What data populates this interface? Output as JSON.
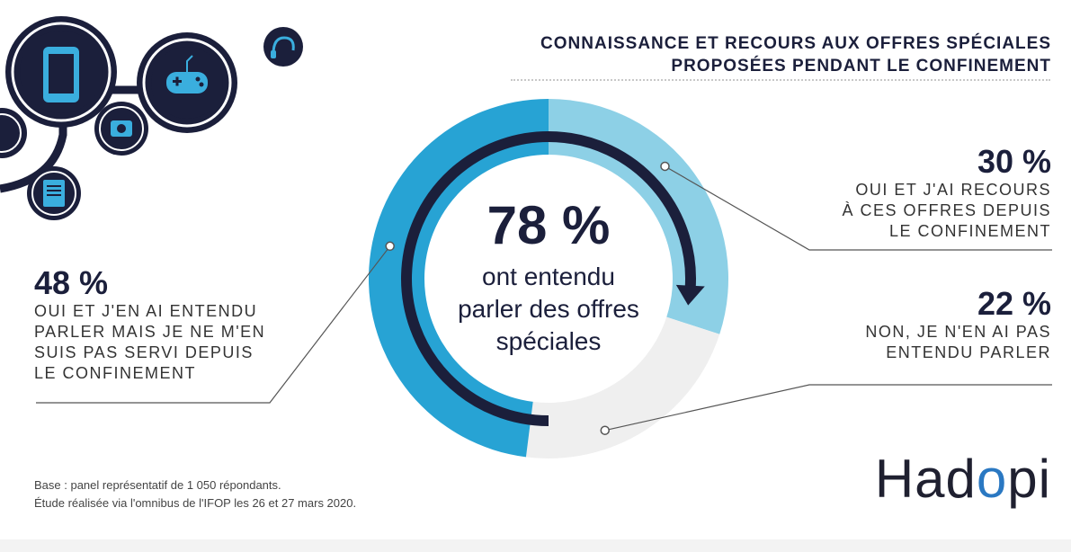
{
  "title": {
    "line1": "CONNAISSANCE ET RECOURS AUX OFFRES SPÉCIALES",
    "line2": "PROPOSÉES PENDANT LE CONFINEMENT"
  },
  "center": {
    "value": "78 %",
    "label": "ont entendu\nparler des offres\nspéciales"
  },
  "callouts": {
    "left": {
      "pct": "48 %",
      "desc": "OUI ET J'EN AI ENTENDU\nPARLER MAIS JE NE M'EN\nSUIS PAS SERVI DEPUIS\nLE CONFINEMENT"
    },
    "right_top": {
      "pct": "30 %",
      "desc": "OUI ET J'AI RECOURS\nÀ CES OFFRES DEPUIS\nLE CONFINEMENT"
    },
    "right_bottom": {
      "pct": "22 %",
      "desc": "NON, JE N'EN AI PAS\nENTENDU PARLER"
    }
  },
  "base_note": "Base : panel représentatif de 1 050 répondants.\nÉtude réalisée via l'omnibus de l'IFOP les 26 et 27 mars 2020.",
  "logo": {
    "part1": "Had",
    "accent": "o",
    "part2": "pi"
  },
  "icons": [
    "smartphone-icon",
    "gamepad-icon",
    "headphones-icon",
    "camera-icon",
    "ebook-icon"
  ],
  "colors": {
    "dark_navy": "#1b1f3b",
    "blue_dark": "#27a3d4",
    "blue_light": "#8dd0e6",
    "grey": "#efefef",
    "accent_logo": "#2a78c2"
  },
  "chart_data": {
    "type": "pie",
    "style": "donut",
    "categories": [
      "Oui et j'ai recours à ces offres depuis le confinement",
      "Non, je n'en ai pas entendu parler",
      "Oui et j'en ai entendu parler mais je ne m'en suis pas servi depuis le confinement"
    ],
    "values": [
      30,
      22,
      48
    ],
    "colors": [
      "#8dd0e6",
      "#efefef",
      "#27a3d4"
    ],
    "center_value": 78,
    "start_angle_deg": 0,
    "direction": "clockwise"
  }
}
